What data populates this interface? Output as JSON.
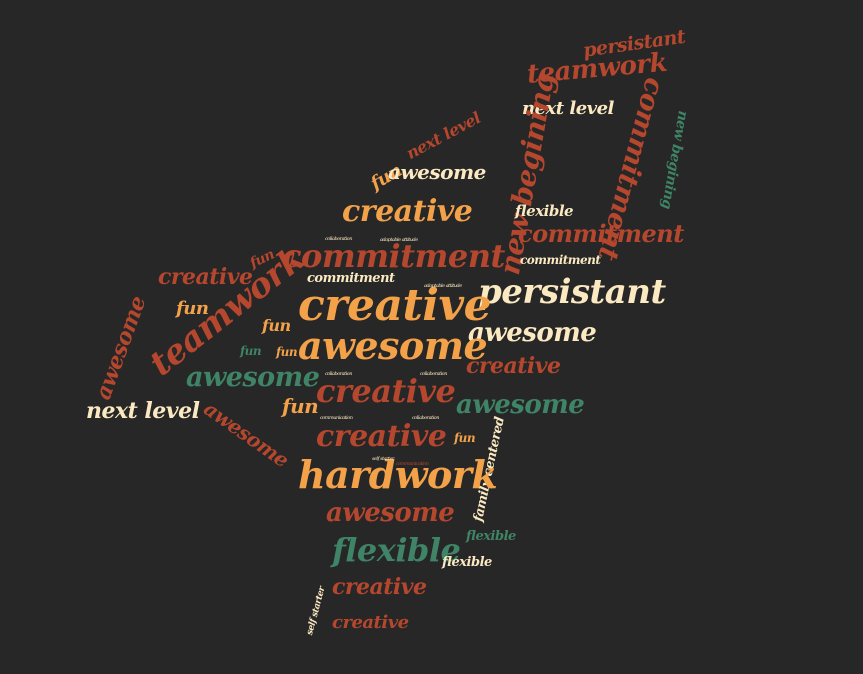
{
  "word_cloud": {
    "words": [
      "persistant",
      "teamwork",
      "next level",
      "commitment",
      "new begining",
      "next level",
      "new begining",
      "fun",
      "awesome",
      "creative",
      "flexible",
      "commitment",
      "commitment",
      "commitment",
      "creative",
      "fun",
      "commitment",
      "persistant",
      "fun",
      "teamwork",
      "creative",
      "awesome",
      "awesome",
      "fun",
      "fun",
      "awesome",
      "awesome",
      "fun",
      "creative",
      "creative",
      "awesome",
      "next level",
      "fun",
      "awesome",
      "creative",
      "fun",
      "family centered",
      "hardwork",
      "awesome",
      "flexible",
      "flexible",
      "flexible",
      "creative",
      "self starter",
      "creative",
      "collaboration",
      "adaptable attitude",
      "adaptable attitude",
      "collaboration",
      "collaboration",
      "communication",
      "collaboration",
      "self starter",
      "communication"
    ]
  }
}
